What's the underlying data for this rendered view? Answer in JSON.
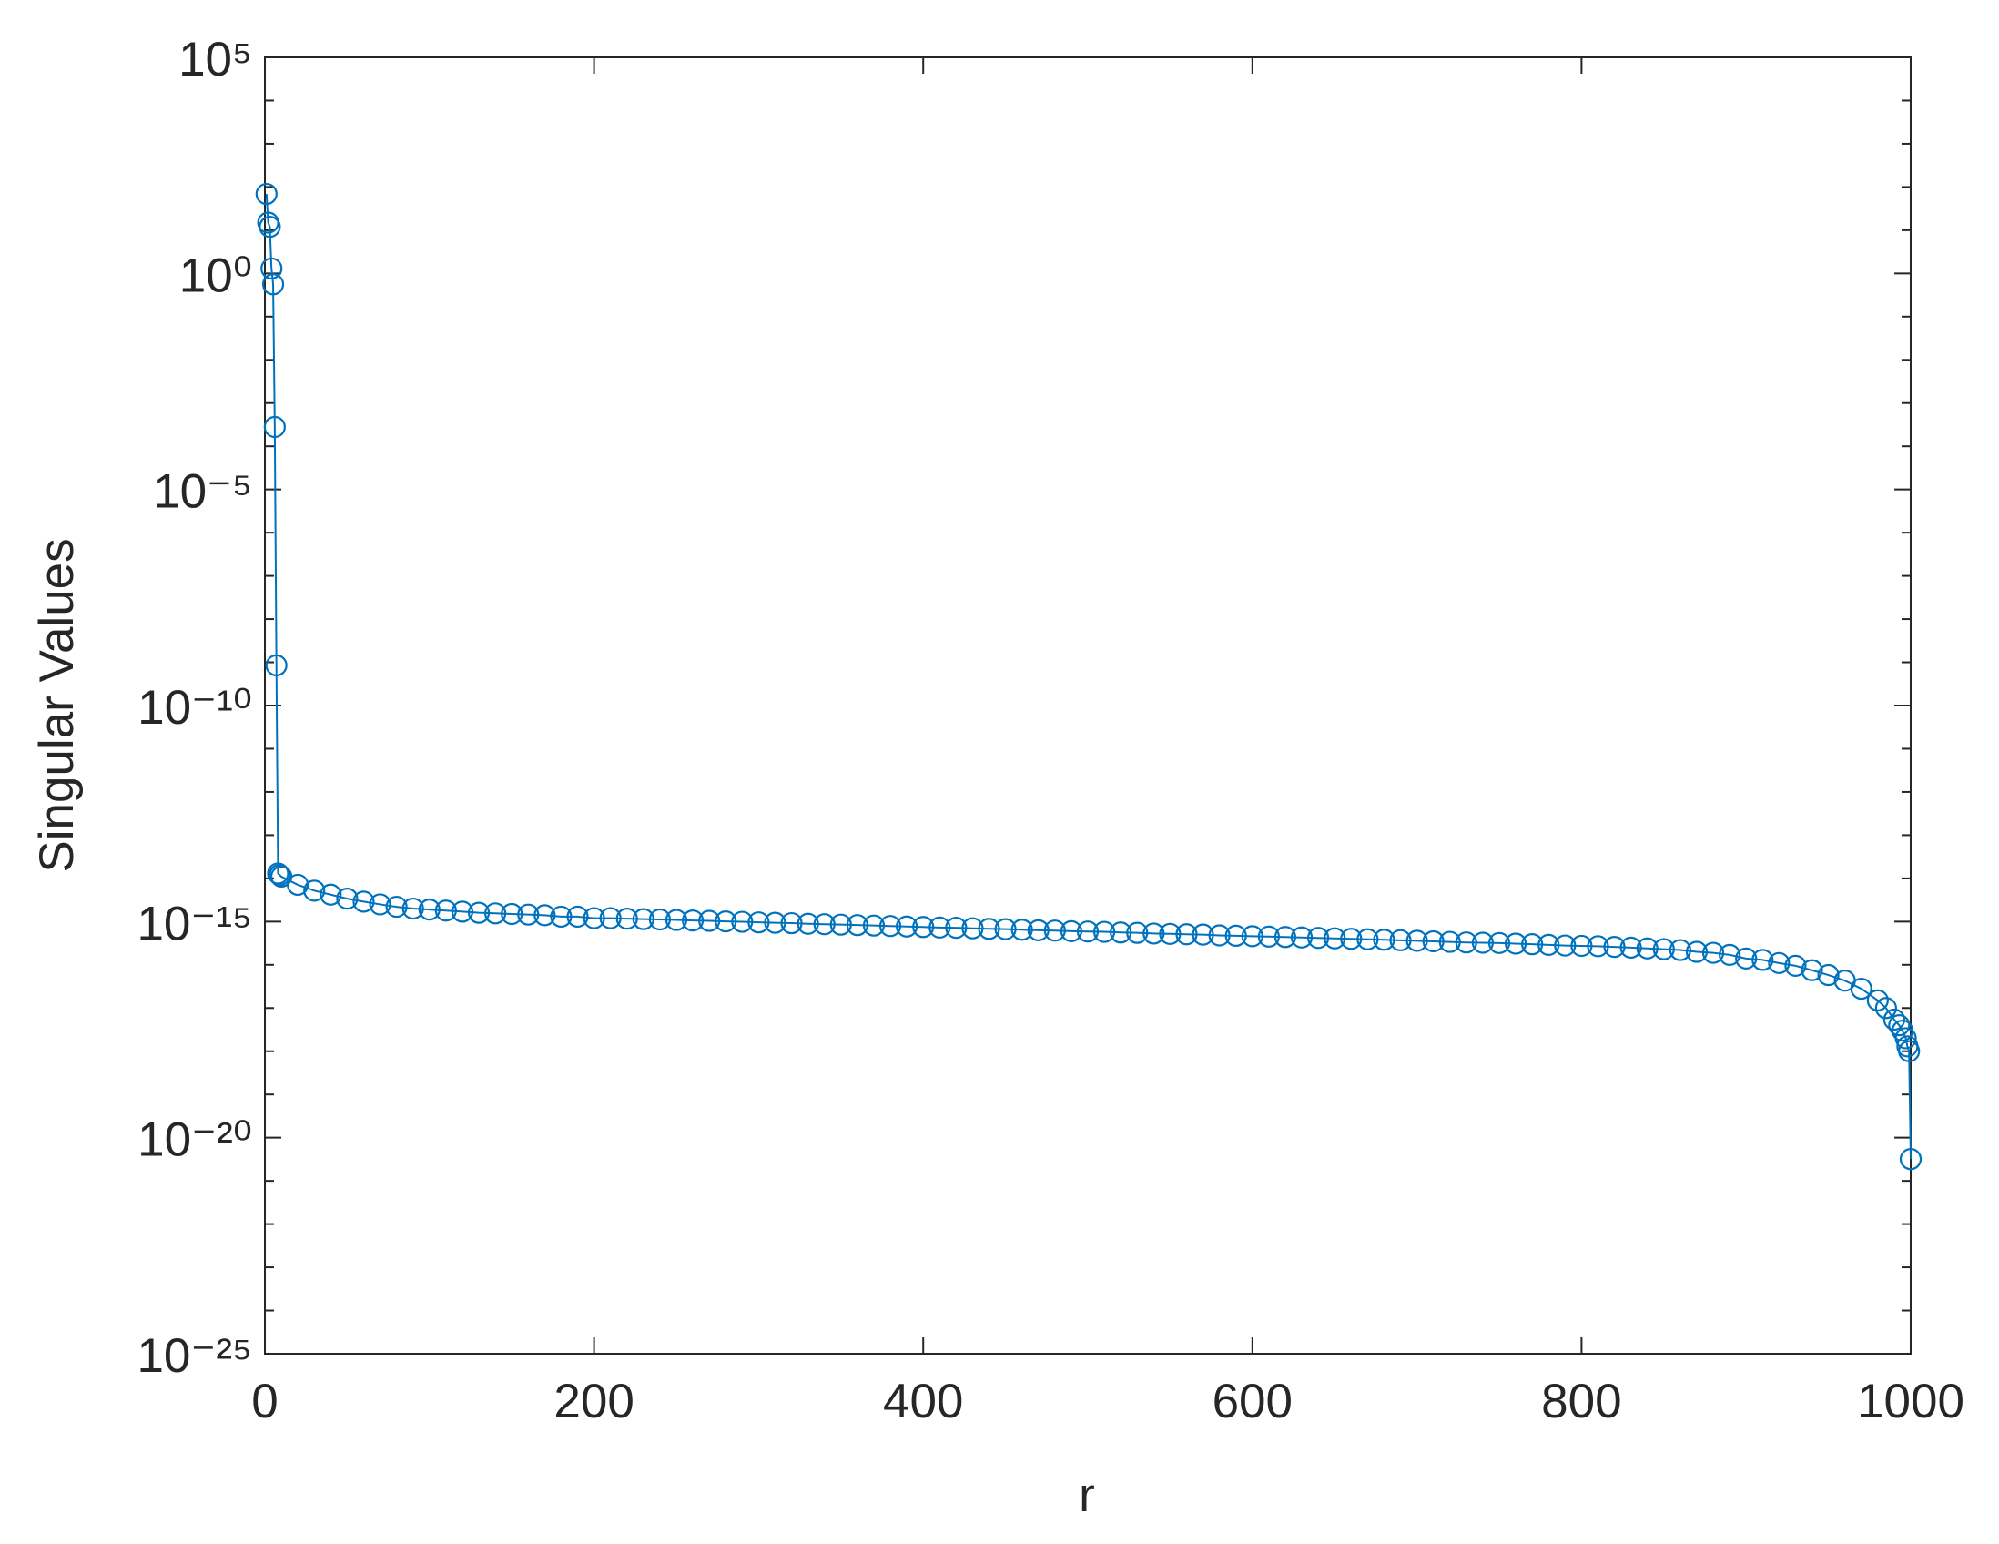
{
  "chart_data": {
    "type": "line",
    "marker": "circle",
    "xlabel": "r",
    "ylabel": "Singular Values",
    "color": "#0072bd",
    "log_y": true,
    "box": true,
    "x": [
      1,
      2,
      3,
      4,
      5,
      6,
      7,
      8,
      9,
      10,
      20,
      30,
      40,
      50,
      60,
      70,
      80,
      90,
      100,
      110,
      120,
      130,
      140,
      150,
      160,
      170,
      180,
      190,
      200,
      210,
      220,
      230,
      240,
      250,
      260,
      270,
      280,
      290,
      300,
      310,
      320,
      330,
      340,
      350,
      360,
      370,
      380,
      390,
      400,
      410,
      420,
      430,
      440,
      450,
      460,
      470,
      480,
      490,
      500,
      510,
      520,
      530,
      540,
      550,
      560,
      570,
      580,
      590,
      600,
      610,
      620,
      630,
      640,
      650,
      660,
      670,
      680,
      690,
      700,
      710,
      720,
      730,
      740,
      750,
      760,
      770,
      780,
      790,
      800,
      810,
      820,
      830,
      840,
      850,
      860,
      870,
      880,
      890,
      900,
      910,
      920,
      930,
      940,
      950,
      960,
      970,
      980,
      985,
      990,
      993,
      995,
      997,
      998,
      999,
      1000
    ],
    "values": [
      69,
      15,
      12,
      1.3,
      0.56,
      0.00028,
      8.5e-10,
      1.3e-14,
      1.2e-14,
      1.1e-14,
      7.1e-15,
      5.2e-15,
      4.2e-15,
      3.4e-15,
      2.9e-15,
      2.5e-15,
      2.2e-15,
      2e-15,
      1.9e-15,
      1.8e-15,
      1.7e-15,
      1.6e-15,
      1.55e-15,
      1.5e-15,
      1.45e-15,
      1.4e-15,
      1.3e-15,
      1.3e-15,
      1.2e-15,
      1.2e-15,
      1.17e-15,
      1.14e-15,
      1.12e-15,
      1.09e-15,
      1.06e-15,
      1.04e-15,
      1.01e-15,
      9.9e-16,
      9.6e-16,
      9.4e-16,
      9.2e-16,
      8.9e-16,
      8.7e-16,
      8.5e-16,
      8.3e-16,
      8.1e-16,
      7.9e-16,
      7.7e-16,
      7.5e-16,
      7.3e-16,
      7.2e-16,
      7e-16,
      6.8e-16,
      6.7e-16,
      6.5e-16,
      6.3e-16,
      6.2e-16,
      6e-16,
      5.9e-16,
      5.8e-16,
      5.6e-16,
      5.5e-16,
      5.3e-16,
      5.2e-16,
      5.1e-16,
      5e-16,
      4.8e-16,
      4.7e-16,
      4.6e-16,
      4.5e-16,
      4.4e-16,
      4.3e-16,
      4.2e-16,
      4.1e-16,
      4e-16,
      3.9e-16,
      3.8e-16,
      3.7e-16,
      3.6e-16,
      3.5e-16,
      3.4e-16,
      3.3e-16,
      3.25e-16,
      3.2e-16,
      3.1e-16,
      3e-16,
      2.9e-16,
      2.8e-16,
      2.75e-16,
      2.7e-16,
      2.6e-16,
      2.5e-16,
      2.4e-16,
      2.3e-16,
      2.2e-16,
      2e-16,
      1.9e-16,
      1.7e-16,
      1.4e-16,
      1.3e-16,
      1.1e-16,
      9.5e-17,
      7.5e-17,
      5.8e-17,
      4.3e-17,
      2.8e-17,
      1.5e-17,
      1e-17,
      5.4e-18,
      4e-18,
      3e-18,
      2e-18,
      1.3e-18,
      1e-18,
      3.2e-21
    ],
    "xlim": [
      0,
      1000
    ],
    "xticks": [
      0,
      200,
      400,
      600,
      800,
      1000
    ],
    "ylim": [
      1e-25,
      100000.0
    ],
    "yticks": [
      {
        "value": 1e-25,
        "label": "10⁻²⁵"
      },
      {
        "value": 1e-20,
        "label": "10⁻²⁰"
      },
      {
        "value": 1e-15,
        "label": "10⁻¹⁵"
      },
      {
        "value": 1e-10,
        "label": "10⁻¹⁰"
      },
      {
        "value": 1e-05,
        "label": "10⁻⁵"
      },
      {
        "value": 1,
        "label": "10⁰"
      },
      {
        "value": 100000,
        "label": "10⁵"
      }
    ],
    "yminorticks": [
      1e-24,
      1e-23,
      1e-22,
      1e-21,
      1e-19,
      1e-18,
      1e-17,
      1e-16,
      1e-14,
      1e-13,
      1e-12,
      1e-11,
      1e-09,
      1e-08,
      1e-07,
      1e-06,
      0.0001,
      0.001,
      0.01,
      0.1,
      10,
      100,
      1000,
      10000
    ]
  }
}
